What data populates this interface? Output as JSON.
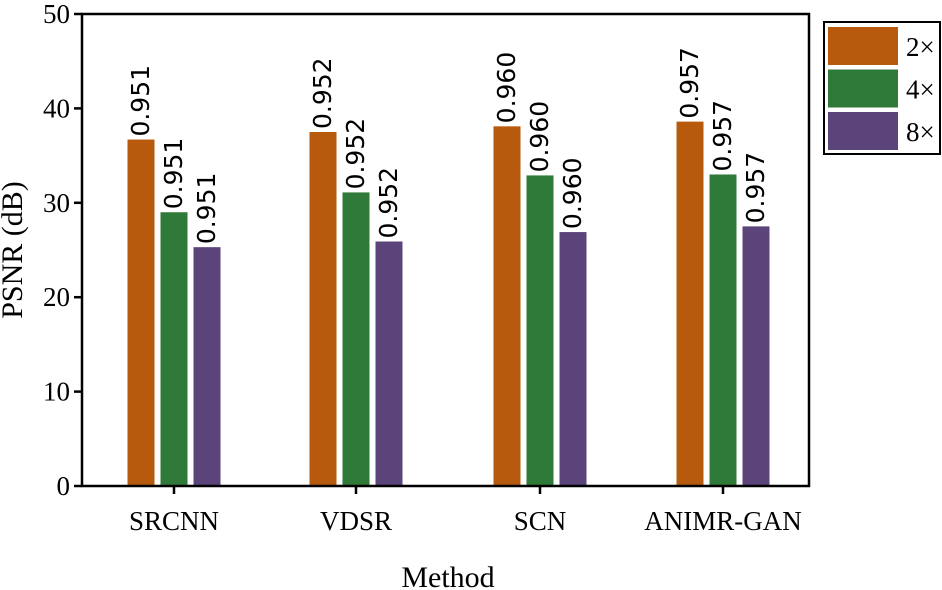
{
  "chart_data": {
    "type": "bar",
    "title": "",
    "xlabel": "Method",
    "ylabel": "PSNR (dB)",
    "ylim": [
      0,
      50
    ],
    "yticks": [
      "0",
      "10",
      "20",
      "30",
      "40",
      "50"
    ],
    "categories": [
      "SRCNN",
      "VDSR",
      "SCN",
      "ANIMR-GAN"
    ],
    "series": [
      {
        "name": "2×",
        "color": "#b85a0d",
        "values": [
          36.7,
          37.5,
          38.1,
          38.6
        ],
        "labels": [
          "0.951",
          "0.952",
          "0.960",
          "0.957"
        ]
      },
      {
        "name": "4×",
        "color": "#2f7a38",
        "values": [
          29.0,
          31.1,
          32.9,
          33.0
        ],
        "labels": [
          "0.951",
          "0.952",
          "0.960",
          "0.957"
        ]
      },
      {
        "name": "8×",
        "color": "#5a447a",
        "values": [
          25.3,
          25.9,
          26.9,
          27.5
        ],
        "labels": [
          "0.951",
          "0.952",
          "0.960",
          "0.957"
        ]
      }
    ],
    "legend_position": "top-right",
    "grid": false
  }
}
